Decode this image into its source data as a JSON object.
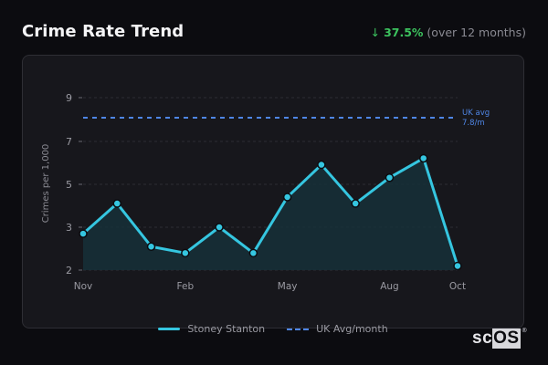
{
  "header": {
    "title": "Crime Rate Trend",
    "trend_arrow": "↓",
    "trend_pct": "37.5%",
    "trend_note": "(over 12 months)"
  },
  "colors": {
    "series": "#35c6e0",
    "uk_avg": "#4f86e6",
    "trend_down": "#3cc25e",
    "background": "#0c0c10",
    "card": "#17171c"
  },
  "chart": {
    "ylabel": "Crimes per 1,000",
    "y_ticks": [
      "9",
      "7",
      "5",
      "3",
      "2"
    ],
    "x_ticks": [
      "Nov",
      "Feb",
      "May",
      "Aug",
      "Oct"
    ],
    "uk_avg_label_line1": "UK avg",
    "uk_avg_label_line2": "7.8/m"
  },
  "legend": {
    "series_label": "Stoney Stanton",
    "avg_label": "UK Avg/month"
  },
  "logo": {
    "text_plain": "sc",
    "text_highlight": "OS",
    "reg": "®"
  },
  "chart_data": {
    "type": "line",
    "title": "Crime Rate Trend",
    "xlabel": "",
    "ylabel": "Crimes per 1,000",
    "x": [
      "Nov",
      "Dec",
      "Jan",
      "Feb",
      "Mar",
      "Apr",
      "May",
      "Jun",
      "Jul",
      "Aug",
      "Sep",
      "Oct"
    ],
    "series": [
      {
        "name": "Stoney Stanton",
        "values": [
          2.7,
          4.1,
          2.1,
          1.8,
          3.0,
          1.8,
          4.4,
          5.9,
          4.1,
          5.3,
          6.2,
          1.2
        ],
        "style": "solid",
        "area_fill": true
      },
      {
        "name": "UK Avg/month",
        "values": [
          7.8,
          7.8,
          7.8,
          7.8,
          7.8,
          7.8,
          7.8,
          7.8,
          7.8,
          7.8,
          7.8,
          7.8
        ],
        "style": "dashed"
      }
    ],
    "y_tick_labels": [
      "2",
      "3",
      "5",
      "7",
      "9"
    ],
    "x_tick_labels": [
      "Nov",
      "Feb",
      "May",
      "Aug",
      "Oct"
    ],
    "annotations": [
      "UK avg 7.8/m",
      "↓ 37.5% (over 12 months)"
    ],
    "grid": true,
    "legend_position": "bottom"
  }
}
